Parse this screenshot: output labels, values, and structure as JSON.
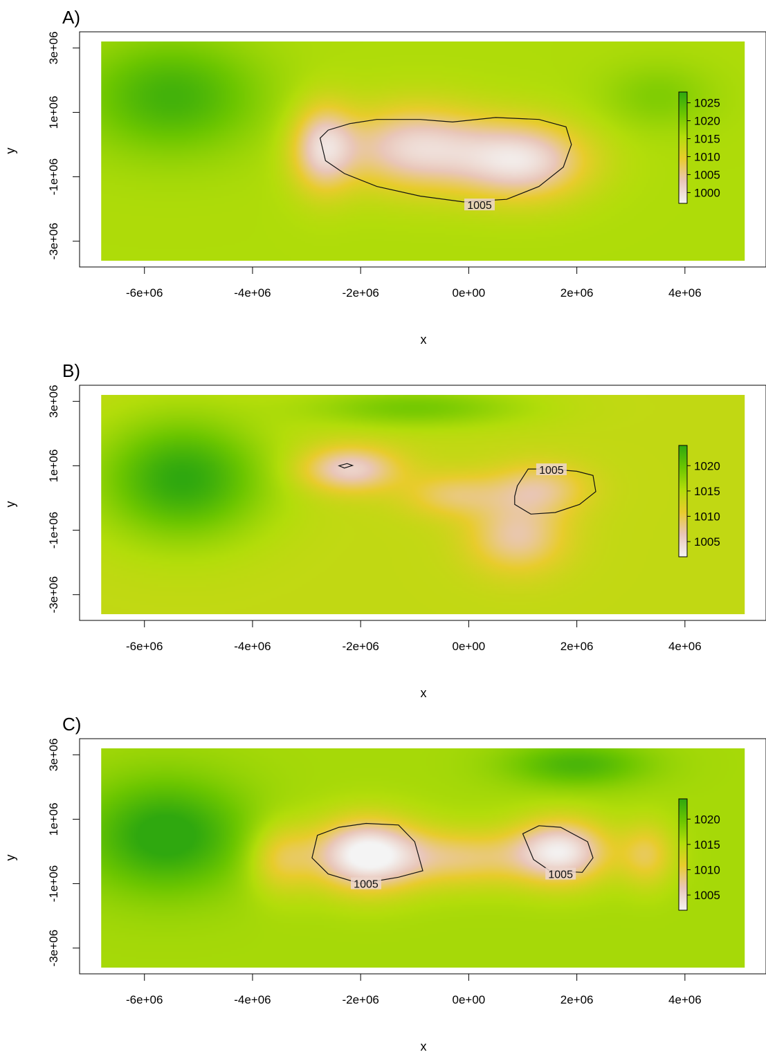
{
  "chart_data": [
    {
      "type": "heatmap",
      "panel_label": "A)",
      "xlabel": "x",
      "ylabel": "y",
      "x_ticks": [
        {
          "value": -6000000,
          "label": "-6e+06"
        },
        {
          "value": -4000000,
          "label": "-4e+06"
        },
        {
          "value": -2000000,
          "label": "-2e+06"
        },
        {
          "value": 0,
          "label": "0e+00"
        },
        {
          "value": 2000000,
          "label": "2e+06"
        },
        {
          "value": 4000000,
          "label": "4e+06"
        }
      ],
      "y_ticks": [
        {
          "value": -3000000,
          "label": "-3e+06"
        },
        {
          "value": -1000000,
          "label": "-1e+06"
        },
        {
          "value": 1000000,
          "label": "1e+06"
        },
        {
          "value": 3000000,
          "label": "3e+06"
        }
      ],
      "xlim": [
        -7200000,
        5500000
      ],
      "ylim": [
        -3800000,
        3500000
      ],
      "data_extent": {
        "x": [
          -6800000,
          5100000
        ],
        "y": [
          -3600000,
          3200000
        ]
      },
      "grid": false,
      "legend": {
        "placement": "right-inside",
        "ticks": [
          1000,
          1005,
          1010,
          1015,
          1020,
          1025
        ],
        "range": [
          997,
          1028
        ],
        "colors": [
          "#f4f4f4",
          "#e9c6b9",
          "#e8cc2c",
          "#b3dd0a",
          "#6cc600",
          "#2fa80f"
        ]
      },
      "field": {
        "background": 1016,
        "lows": [
          {
            "x": -2700000,
            "y": -100000,
            "sx": 580000,
            "sy": 1350000,
            "depth": 14
          },
          {
            "x": -1000000,
            "y": -100000,
            "sx": 1350000,
            "sy": 1300000,
            "depth": 15
          },
          {
            "x": 1000000,
            "y": -500000,
            "sx": 1200000,
            "sy": 1200000,
            "depth": 16
          }
        ],
        "highs": [
          {
            "x": -5500000,
            "y": 1500000,
            "sx": 1600000,
            "sy": 1700000,
            "amp": 10
          },
          {
            "x": 3500000,
            "y": 1500000,
            "sx": 1000000,
            "sy": 1000000,
            "amp": 4
          }
        ]
      },
      "contours": [
        {
          "level_label": "1005",
          "label_at": {
            "x": 200000,
            "y": -1870000
          },
          "points": [
            [
              -2750000,
              200000
            ],
            [
              -2600000,
              450000
            ],
            [
              -2200000,
              650000
            ],
            [
              -1700000,
              780000
            ],
            [
              -900000,
              780000
            ],
            [
              -300000,
              700000
            ],
            [
              500000,
              840000
            ],
            [
              1300000,
              780000
            ],
            [
              1800000,
              550000
            ],
            [
              1900000,
              0
            ],
            [
              1750000,
              -700000
            ],
            [
              1300000,
              -1300000
            ],
            [
              700000,
              -1700000
            ],
            [
              -100000,
              -1780000
            ],
            [
              -900000,
              -1600000
            ],
            [
              -1700000,
              -1300000
            ],
            [
              -2300000,
              -900000
            ],
            [
              -2650000,
              -500000
            ]
          ]
        }
      ]
    },
    {
      "type": "heatmap",
      "panel_label": "B)",
      "xlabel": "x",
      "ylabel": "y",
      "x_ticks": [
        {
          "value": -6000000,
          "label": "-6e+06"
        },
        {
          "value": -4000000,
          "label": "-4e+06"
        },
        {
          "value": -2000000,
          "label": "-2e+06"
        },
        {
          "value": 0,
          "label": "0e+00"
        },
        {
          "value": 2000000,
          "label": "2e+06"
        },
        {
          "value": 4000000,
          "label": "4e+06"
        }
      ],
      "y_ticks": [
        {
          "value": -3000000,
          "label": "-3e+06"
        },
        {
          "value": -1000000,
          "label": "-1e+06"
        },
        {
          "value": 1000000,
          "label": "1e+06"
        },
        {
          "value": 3000000,
          "label": "3e+06"
        }
      ],
      "xlim": [
        -7200000,
        5500000
      ],
      "ylim": [
        -3800000,
        3500000
      ],
      "data_extent": {
        "x": [
          -6800000,
          5100000
        ],
        "y": [
          -3600000,
          3200000
        ]
      },
      "grid": false,
      "legend": {
        "placement": "right-inside",
        "ticks": [
          1005,
          1010,
          1015,
          1020
        ],
        "range": [
          1002,
          1024
        ],
        "colors": [
          "#f4f4f4",
          "#e9c6b9",
          "#e8cc2c",
          "#b3dd0a",
          "#6cc600",
          "#2fa80f"
        ]
      },
      "field": {
        "background": 1014,
        "lows": [
          {
            "x": -2200000,
            "y": 900000,
            "sx": 900000,
            "sy": 700000,
            "depth": 9
          },
          {
            "x": 1300000,
            "y": 300000,
            "sx": 900000,
            "sy": 800000,
            "depth": 6
          },
          {
            "x": 900000,
            "y": -1200000,
            "sx": 900000,
            "sy": 1100000,
            "depth": 7
          },
          {
            "x": -300000,
            "y": 100000,
            "sx": 900000,
            "sy": 700000,
            "depth": 5
          }
        ],
        "highs": [
          {
            "x": -5300000,
            "y": 600000,
            "sx": 1500000,
            "sy": 1800000,
            "amp": 10
          },
          {
            "x": -1000000,
            "y": 2800000,
            "sx": 2000000,
            "sy": 600000,
            "amp": 5
          }
        ]
      },
      "contours": [
        {
          "level_label": "1005",
          "label_at": {
            "x": 1530000,
            "y": 880000
          },
          "points": [
            [
              900000,
              380000
            ],
            [
              1100000,
              900000
            ],
            [
              1500000,
              900000
            ],
            [
              2000000,
              830000
            ],
            [
              2300000,
              700000
            ],
            [
              2350000,
              200000
            ],
            [
              2050000,
              -200000
            ],
            [
              1600000,
              -450000
            ],
            [
              1150000,
              -500000
            ],
            [
              850000,
              -200000
            ],
            [
              850000,
              50000
            ]
          ]
        },
        {
          "level_label": "",
          "label_at": null,
          "points": [
            [
              -2400000,
              1000000
            ],
            [
              -2250000,
              1070000
            ],
            [
              -2150000,
              1010000
            ],
            [
              -2300000,
              930000
            ]
          ]
        }
      ]
    },
    {
      "type": "heatmap",
      "panel_label": "C)",
      "xlabel": "x",
      "ylabel": "y",
      "x_ticks": [
        {
          "value": -6000000,
          "label": "-6e+06"
        },
        {
          "value": -4000000,
          "label": "-4e+06"
        },
        {
          "value": -2000000,
          "label": "-2e+06"
        },
        {
          "value": 0,
          "label": "0e+00"
        },
        {
          "value": 2000000,
          "label": "2e+06"
        },
        {
          "value": 4000000,
          "label": "4e+06"
        }
      ],
      "y_ticks": [
        {
          "value": -3000000,
          "label": "-3e+06"
        },
        {
          "value": -1000000,
          "label": "-1e+06"
        },
        {
          "value": 1000000,
          "label": "1e+06"
        },
        {
          "value": 3000000,
          "label": "3e+06"
        }
      ],
      "xlim": [
        -7200000,
        5500000
      ],
      "ylim": [
        -3800000,
        3500000
      ],
      "data_extent": {
        "x": [
          -6800000,
          5100000
        ],
        "y": [
          -3600000,
          3200000
        ]
      },
      "grid": false,
      "legend": {
        "placement": "right-inside",
        "ticks": [
          1005,
          1010,
          1015,
          1020
        ],
        "range": [
          1002,
          1024
        ],
        "colors": [
          "#f4f4f4",
          "#e9c6b9",
          "#e8cc2c",
          "#b3dd0a",
          "#6cc600",
          "#2fa80f"
        ]
      },
      "field": {
        "background": 1016,
        "lows": [
          {
            "x": -1900000,
            "y": -100000,
            "sx": 1000000,
            "sy": 1100000,
            "depth": 15
          },
          {
            "x": 1700000,
            "y": 0,
            "sx": 900000,
            "sy": 1000000,
            "depth": 13
          },
          {
            "x": -100000,
            "y": -200000,
            "sx": 1200000,
            "sy": 900000,
            "depth": 7
          },
          {
            "x": -3500000,
            "y": -200000,
            "sx": 600000,
            "sy": 1100000,
            "depth": 6
          },
          {
            "x": 3300000,
            "y": -100000,
            "sx": 500000,
            "sy": 1000000,
            "depth": 6
          }
        ],
        "highs": [
          {
            "x": -5600000,
            "y": 500000,
            "sx": 1500000,
            "sy": 1700000,
            "amp": 9
          },
          {
            "x": 2000000,
            "y": 2700000,
            "sx": 1300000,
            "sy": 700000,
            "amp": 6
          }
        ]
      },
      "contours": [
        {
          "level_label": "1005",
          "label_at": {
            "x": -1900000,
            "y": -1000000
          },
          "points": [
            [
              -2800000,
              500000
            ],
            [
              -2400000,
              750000
            ],
            [
              -1900000,
              870000
            ],
            [
              -1300000,
              820000
            ],
            [
              -1000000,
              300000
            ],
            [
              -850000,
              -600000
            ],
            [
              -1300000,
              -800000
            ],
            [
              -2000000,
              -1000000
            ],
            [
              -2600000,
              -700000
            ],
            [
              -2900000,
              -200000
            ]
          ]
        },
        {
          "level_label": "1005",
          "label_at": {
            "x": 1700000,
            "y": -700000
          },
          "points": [
            [
              1000000,
              550000
            ],
            [
              1300000,
              800000
            ],
            [
              1700000,
              750000
            ],
            [
              2200000,
              300000
            ],
            [
              2300000,
              -200000
            ],
            [
              2100000,
              -650000
            ],
            [
              1500000,
              -600000
            ],
            [
              1200000,
              -250000
            ]
          ]
        }
      ]
    }
  ]
}
